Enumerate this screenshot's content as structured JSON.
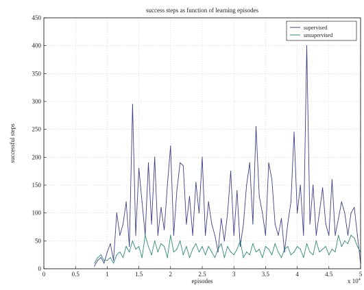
{
  "chart_data": {
    "type": "line",
    "title": "success steps as function of learning episodes",
    "xlabel": "episodes",
    "ylabel": "successful steps",
    "x_multiplier_label": "x 10",
    "x_multiplier_exp": "4",
    "xlim": [
      0,
      5
    ],
    "ylim": [
      0,
      450
    ],
    "xticks": [
      0,
      0.5,
      1,
      1.5,
      2,
      2.5,
      3,
      3.5,
      4,
      4.5,
      5
    ],
    "xtick_labels": [
      "0",
      "0.5",
      "1",
      "1.5",
      "2",
      "2.5",
      "3",
      "3.5",
      "4",
      "4.5",
      "5"
    ],
    "yticks": [
      0,
      50,
      100,
      150,
      200,
      250,
      300,
      350,
      400,
      450
    ],
    "ytick_labels": [
      "0",
      "50",
      "100",
      "150",
      "200",
      "250",
      "300",
      "350",
      "400",
      "450"
    ],
    "grid": true,
    "legend_position": "top-right",
    "series": [
      {
        "name": "supervised",
        "color": "#3c3f86",
        "x": [
          0.8,
          0.85,
          0.9,
          0.95,
          1.0,
          1.05,
          1.1,
          1.15,
          1.2,
          1.25,
          1.3,
          1.35,
          1.4,
          1.45,
          1.5,
          1.55,
          1.6,
          1.65,
          1.7,
          1.75,
          1.8,
          1.85,
          1.9,
          1.95,
          2.0,
          2.05,
          2.1,
          2.15,
          2.2,
          2.25,
          2.3,
          2.35,
          2.4,
          2.45,
          2.5,
          2.55,
          2.6,
          2.65,
          2.7,
          2.75,
          2.8,
          2.85,
          2.9,
          2.95,
          3.0,
          3.05,
          3.1,
          3.15,
          3.2,
          3.25,
          3.3,
          3.35,
          3.4,
          3.45,
          3.5,
          3.55,
          3.6,
          3.65,
          3.7,
          3.75,
          3.8,
          3.85,
          3.9,
          3.95,
          4.0,
          4.05,
          4.1,
          4.15,
          4.2,
          4.25,
          4.3,
          4.35,
          4.4,
          4.45,
          4.5,
          4.55,
          4.6,
          4.65,
          4.7,
          4.75,
          4.8,
          4.85,
          4.9,
          4.95,
          5.0
        ],
        "values": [
          5,
          15,
          20,
          10,
          30,
          45,
          15,
          100,
          60,
          80,
          120,
          40,
          295,
          60,
          180,
          120,
          60,
          190,
          80,
          200,
          60,
          110,
          70,
          150,
          220,
          60,
          140,
          190,
          185,
          80,
          130,
          60,
          155,
          100,
          200,
          60,
          120,
          80,
          60,
          30,
          90,
          50,
          100,
          175,
          60,
          140,
          40,
          80,
          150,
          190,
          80,
          255,
          130,
          100,
          60,
          190,
          160,
          80,
          60,
          90,
          30,
          80,
          120,
          245,
          100,
          150,
          60,
          400,
          80,
          150,
          60,
          100,
          145,
          80,
          60,
          160,
          60,
          90,
          120,
          100,
          60,
          100,
          110,
          60,
          10
        ]
      },
      {
        "name": "unsupervised",
        "color": "#2e8b73",
        "x": [
          0.8,
          0.85,
          0.9,
          0.95,
          1.0,
          1.05,
          1.1,
          1.15,
          1.2,
          1.25,
          1.3,
          1.35,
          1.4,
          1.45,
          1.5,
          1.55,
          1.6,
          1.65,
          1.7,
          1.75,
          1.8,
          1.85,
          1.9,
          1.95,
          2.0,
          2.05,
          2.1,
          2.15,
          2.2,
          2.25,
          2.3,
          2.35,
          2.4,
          2.45,
          2.5,
          2.55,
          2.6,
          2.65,
          2.7,
          2.75,
          2.8,
          2.85,
          2.9,
          2.95,
          3.0,
          3.05,
          3.1,
          3.15,
          3.2,
          3.25,
          3.3,
          3.35,
          3.4,
          3.45,
          3.5,
          3.55,
          3.6,
          3.65,
          3.7,
          3.75,
          3.8,
          3.85,
          3.9,
          3.95,
          4.0,
          4.05,
          4.1,
          4.15,
          4.2,
          4.25,
          4.3,
          4.35,
          4.4,
          4.45,
          4.5,
          4.55,
          4.6,
          4.65,
          4.7,
          4.75,
          4.8,
          4.85,
          4.9,
          4.95,
          5.0
        ],
        "values": [
          10,
          20,
          25,
          15,
          15,
          20,
          10,
          25,
          30,
          20,
          40,
          30,
          50,
          35,
          40,
          20,
          60,
          40,
          25,
          50,
          30,
          45,
          40,
          20,
          60,
          30,
          35,
          50,
          25,
          40,
          20,
          35,
          45,
          30,
          40,
          25,
          40,
          30,
          20,
          35,
          45,
          20,
          40,
          30,
          25,
          35,
          50,
          20,
          30,
          25,
          45,
          30,
          35,
          20,
          40,
          35,
          25,
          45,
          30,
          20,
          35,
          40,
          25,
          30,
          40,
          35,
          20,
          45,
          30,
          25,
          50,
          30,
          35,
          40,
          25,
          35,
          30,
          60,
          40,
          50,
          45,
          60,
          55,
          40,
          30
        ]
      }
    ]
  }
}
